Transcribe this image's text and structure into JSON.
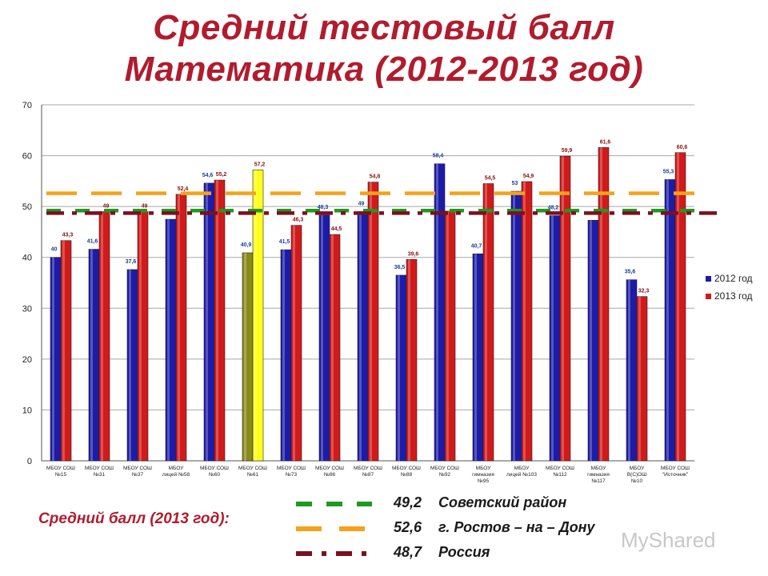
{
  "title_line1": "Средний тестовый балл",
  "title_line2": "Математика (2012-2013 год)",
  "colors": {
    "title": "#b01c2e",
    "series_2012": "#1c1ca8",
    "series_2013": "#d11a1a",
    "highlight_2012": "#8a8a1c",
    "highlight_2013": "#ffff1a",
    "ref_sovetsky": "#1e9a1e",
    "ref_rostov": "#f5a21b",
    "ref_russia": "#7a1020"
  },
  "chart_data": {
    "type": "bar",
    "categories": [
      [
        "МБОУ СОШ",
        "№15"
      ],
      [
        "МБОУ СОШ",
        "№31"
      ],
      [
        "МБОУ СОШ",
        "№37"
      ],
      [
        "МБОУ",
        "лицей №58"
      ],
      [
        "МБОУ СОШ",
        "№60"
      ],
      [
        "МБОУ СОШ",
        "№61"
      ],
      [
        "МБОУ СОШ",
        "№73"
      ],
      [
        "МБОУ СОШ",
        "№86"
      ],
      [
        "МБОУ СОШ",
        "№87"
      ],
      [
        "МБОУ СОШ",
        "№88"
      ],
      [
        "МБОУ СОШ",
        "№92"
      ],
      [
        "МБОУ",
        "гимназия",
        "№95"
      ],
      [
        "МБОУ",
        "лицей №103"
      ],
      [
        "МБОУ СОШ",
        "№112"
      ],
      [
        "МБОУ",
        "гимназия",
        "№117"
      ],
      [
        "МБОУ",
        "В(С)ОШ",
        "№10"
      ],
      [
        "МБОУ СОШ",
        "\"Источник\""
      ]
    ],
    "series": [
      {
        "name": "2012 год",
        "values": [
          40,
          41.6,
          37.6,
          47.5,
          54.6,
          40.9,
          41.5,
          48.3,
          49,
          36.5,
          58.4,
          40.7,
          53,
          48.2,
          47.3,
          35.6,
          55.3
        ],
        "labels": [
          "40",
          "41,6",
          "37,6",
          "",
          "54,6",
          "40,9",
          "41,5",
          "48,3",
          "49",
          "36,5",
          "58,4",
          "40,7",
          "53",
          "48,2",
          "",
          "35,6",
          "55,3"
        ]
      },
      {
        "name": "2013 год",
        "values": [
          43.3,
          49,
          49,
          52.4,
          55.2,
          57.2,
          46.3,
          44.5,
          54.8,
          39.6,
          49.1,
          54.5,
          54.9,
          59.9,
          61.6,
          32.3,
          60.6
        ],
        "labels": [
          "43,3",
          "49",
          "49",
          "52,4",
          "55,2",
          "57,2",
          "46,3",
          "44,5",
          "54,8",
          "39,6",
          "",
          "54,5",
          "54,9",
          "59,9",
          "61,6",
          "32,3",
          "60,6"
        ]
      }
    ],
    "highlight_index": 5,
    "yticks": [
      "0",
      "10",
      "20",
      "30",
      "40",
      "50",
      "60",
      "70"
    ],
    "ylim": [
      0,
      70
    ],
    "grid": true,
    "legend_position": "right",
    "reference_lines": [
      {
        "value": 49.2,
        "label": "Советский район",
        "style": "dash"
      },
      {
        "value": 52.6,
        "label": "г. Ростов – на – Дону",
        "style": "dash"
      },
      {
        "value": 48.7,
        "label": "Россия",
        "style": "dash-dot"
      }
    ]
  },
  "averages": {
    "heading": "Средний балл (2013 год):",
    "rows": [
      {
        "value": "49,2",
        "label": "Советский район"
      },
      {
        "value": "52,6",
        "label": "г. Ростов – на – Дону"
      },
      {
        "value": "48,7",
        "label": "Россия"
      }
    ]
  },
  "watermark": "MyShared"
}
